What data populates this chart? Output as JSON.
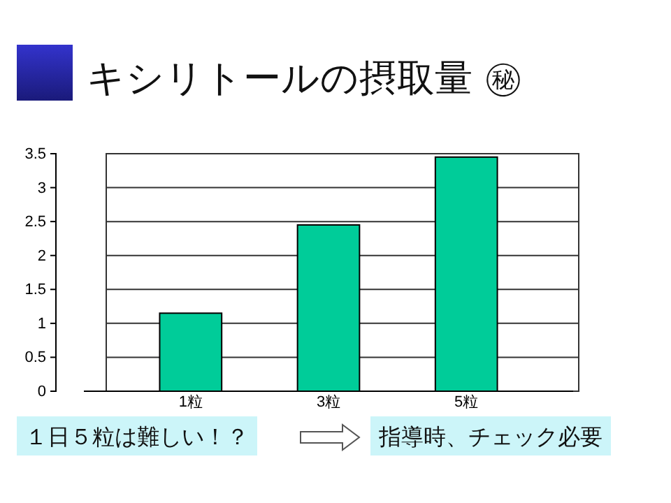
{
  "chart_data": {
    "type": "bar",
    "title": "キシリトールの摂取量 ㊙",
    "categories": [
      "1粒",
      "3粒",
      "5粒"
    ],
    "values": [
      1.15,
      2.45,
      3.45
    ],
    "color": "#00cc99",
    "ylim": [
      0,
      3.5
    ],
    "yticks": [
      0,
      0.5,
      1,
      1.5,
      2,
      2.5,
      3,
      3.5
    ],
    "grid": "y",
    "annotations": [
      "１日５粒は難しい！？",
      "指導時、チェック必要"
    ]
  }
}
